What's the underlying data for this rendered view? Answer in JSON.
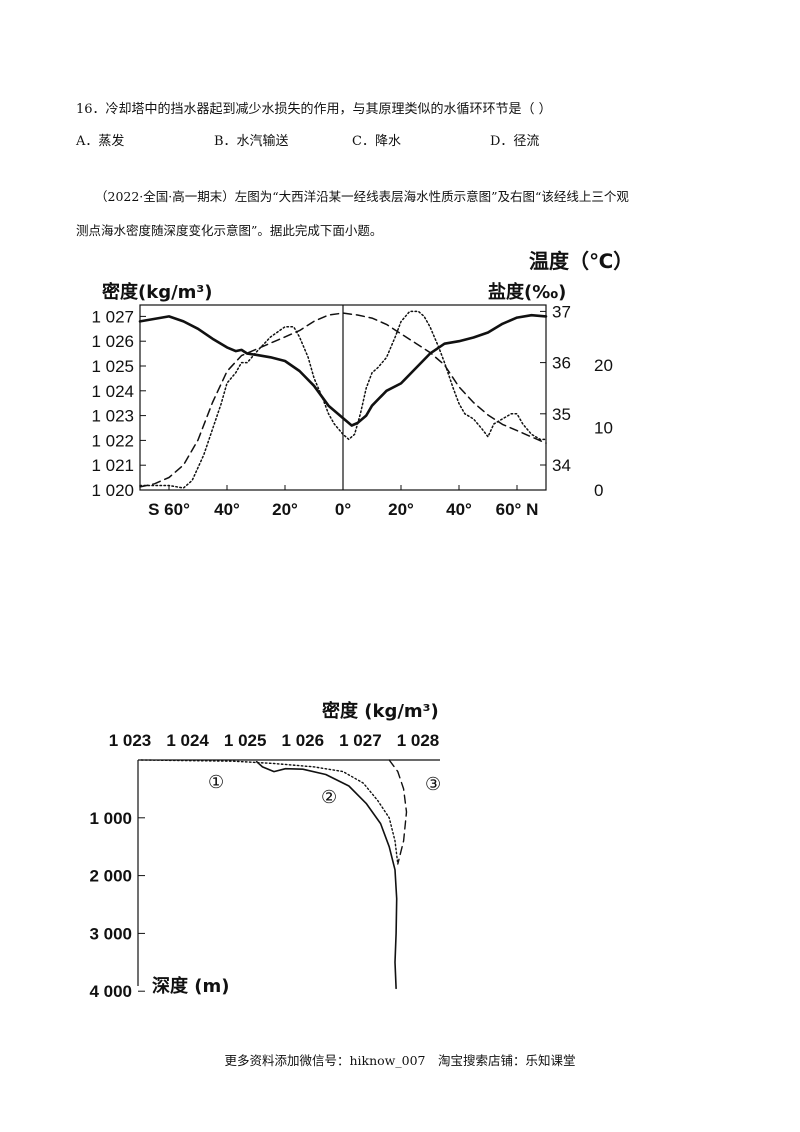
{
  "question16": {
    "stem": "16．冷却塔中的挡水器起到减少水损失的作用，与其原理类似的水循环环节是（   ）",
    "options": [
      "A．蒸发",
      "B．水汽输送",
      "C．降水",
      "D．径流"
    ]
  },
  "intro": {
    "line1": "（2022·全国·高一期末）左图为“大西洋沿某一经线表层海水性质示意图”及右图“该经线上三个观",
    "line2": "测点海水密度随深度变化示意图”。据此完成下面小题。"
  },
  "chart_data": [
    {
      "type": "line",
      "labels": {
        "left_axis": "密度(kg/m³)",
        "right_axis_salinity": "盐度(‰)",
        "right_axis_temperature": "温度（℃）"
      },
      "x_ticks": [
        "S 60°",
        "40°",
        "20°",
        "0°",
        "20°",
        "40°",
        "60° N"
      ],
      "x_range": [
        -70,
        70
      ],
      "density_ticks": [
        "1 020",
        "1 021",
        "1 022",
        "1 023",
        "1 024",
        "1 025",
        "1 026",
        "1 027"
      ],
      "salinity_ticks": [
        "34",
        "35",
        "36",
        "37"
      ],
      "temperature_ticks": [
        "0",
        "10",
        "20"
      ],
      "series": [
        {
          "style": "solid",
          "axis": "density",
          "x": [
            -70,
            -65,
            -60,
            -55,
            -50,
            -45,
            -40,
            -37,
            -35,
            -33,
            -30,
            -25,
            -20,
            -15,
            -10,
            -5,
            0,
            3,
            5,
            8,
            10,
            15,
            20,
            25,
            30,
            35,
            40,
            45,
            50,
            55,
            60,
            65,
            70
          ],
          "y": [
            1026.8,
            1026.9,
            1027.0,
            1026.8,
            1026.5,
            1026.1,
            1025.75,
            1025.6,
            1025.65,
            1025.5,
            1025.45,
            1025.35,
            1025.2,
            1024.8,
            1024.2,
            1023.4,
            1022.9,
            1022.6,
            1022.7,
            1023.0,
            1023.4,
            1024.0,
            1024.3,
            1024.9,
            1025.5,
            1025.9,
            1026.0,
            1026.15,
            1026.35,
            1026.7,
            1026.95,
            1027.05,
            1027.0
          ]
        },
        {
          "style": "dashed",
          "axis": "temperature",
          "x": [
            -70,
            -65,
            -60,
            -55,
            -50,
            -45,
            -40,
            -35,
            -30,
            -25,
            -20,
            -15,
            -10,
            -5,
            0,
            5,
            10,
            15,
            20,
            25,
            30,
            35,
            40,
            45,
            50,
            55,
            60,
            65,
            70
          ],
          "y": [
            0.5,
            1.0,
            2,
            4,
            8,
            14,
            19,
            21.5,
            22.5,
            23.5,
            24.5,
            25.5,
            27,
            28,
            28.3,
            28.0,
            27.5,
            26.5,
            25,
            23.5,
            22,
            20,
            16.5,
            14,
            12,
            10.5,
            9.5,
            8.5,
            7.5
          ]
        },
        {
          "style": "dotted",
          "axis": "salinity",
          "x": [
            -70,
            -65,
            -60,
            -55,
            -52,
            -48,
            -45,
            -42,
            -40,
            -37,
            -35,
            -33,
            -30,
            -25,
            -20,
            -17,
            -15,
            -12,
            -10,
            -7,
            -5,
            -3,
            0,
            2,
            4,
            6,
            8,
            10,
            12,
            15,
            18,
            20,
            23,
            26,
            28,
            30,
            33,
            35,
            38,
            40,
            42,
            45,
            48,
            50,
            52,
            55,
            58,
            60,
            62,
            65,
            68,
            70
          ],
          "y": [
            33.6,
            33.6,
            33.6,
            33.55,
            33.7,
            34.2,
            34.7,
            35.2,
            35.6,
            35.8,
            36.0,
            36.0,
            36.2,
            36.5,
            36.7,
            36.7,
            36.5,
            36.1,
            35.7,
            35.3,
            35.0,
            34.8,
            34.6,
            34.5,
            34.6,
            35.0,
            35.5,
            35.8,
            35.9,
            36.1,
            36.5,
            36.8,
            37.0,
            37.0,
            36.9,
            36.7,
            36.3,
            36.0,
            35.5,
            35.2,
            35.0,
            34.9,
            34.7,
            34.55,
            34.8,
            34.9,
            35.0,
            35.0,
            34.8,
            34.6,
            34.5,
            34.5
          ]
        }
      ]
    },
    {
      "type": "line",
      "labels": {
        "top_axis": "密度 (kg/m³)",
        "left_axis": "深度 (m)"
      },
      "x_ticks": [
        "1 023",
        "1 024",
        "1 025",
        "1 026",
        "1 027",
        "1 028"
      ],
      "x_range": [
        1023,
        1028
      ],
      "y_ticks": [
        "1 000",
        "2 000",
        "3 000",
        "4 000"
      ],
      "y_range": [
        0,
        4000
      ],
      "markers": [
        "①",
        "②",
        "③"
      ],
      "series": [
        {
          "style": "dotted",
          "marker": "①",
          "x": [
            1023.2,
            1024.0,
            1024.8,
            1025.5,
            1026.2,
            1026.7,
            1027.05,
            1027.3,
            1027.5,
            1027.6,
            1027.65
          ],
          "y": [
            0,
            10,
            20,
            60,
            120,
            200,
            400,
            700,
            1000,
            1400,
            1800
          ]
        },
        {
          "style": "solid",
          "marker": "②",
          "x": [
            1025.2,
            1025.3,
            1025.5,
            1025.7,
            1026.0,
            1026.4,
            1026.8,
            1027.1,
            1027.35,
            1027.5,
            1027.6,
            1027.63,
            1027.62,
            1027.6,
            1027.62
          ],
          "y": [
            30,
            120,
            200,
            150,
            160,
            250,
            450,
            750,
            1100,
            1500,
            1900,
            2400,
            3000,
            3500,
            3950
          ]
        },
        {
          "style": "dashed",
          "marker": "③",
          "x": [
            1027.5,
            1027.65,
            1027.75,
            1027.8,
            1027.75,
            1027.65
          ],
          "y": [
            0,
            200,
            500,
            900,
            1400,
            1800
          ]
        }
      ]
    }
  ],
  "footer": "更多资料添加微信号：hiknow_007　淘宝搜索店铺：乐知课堂"
}
